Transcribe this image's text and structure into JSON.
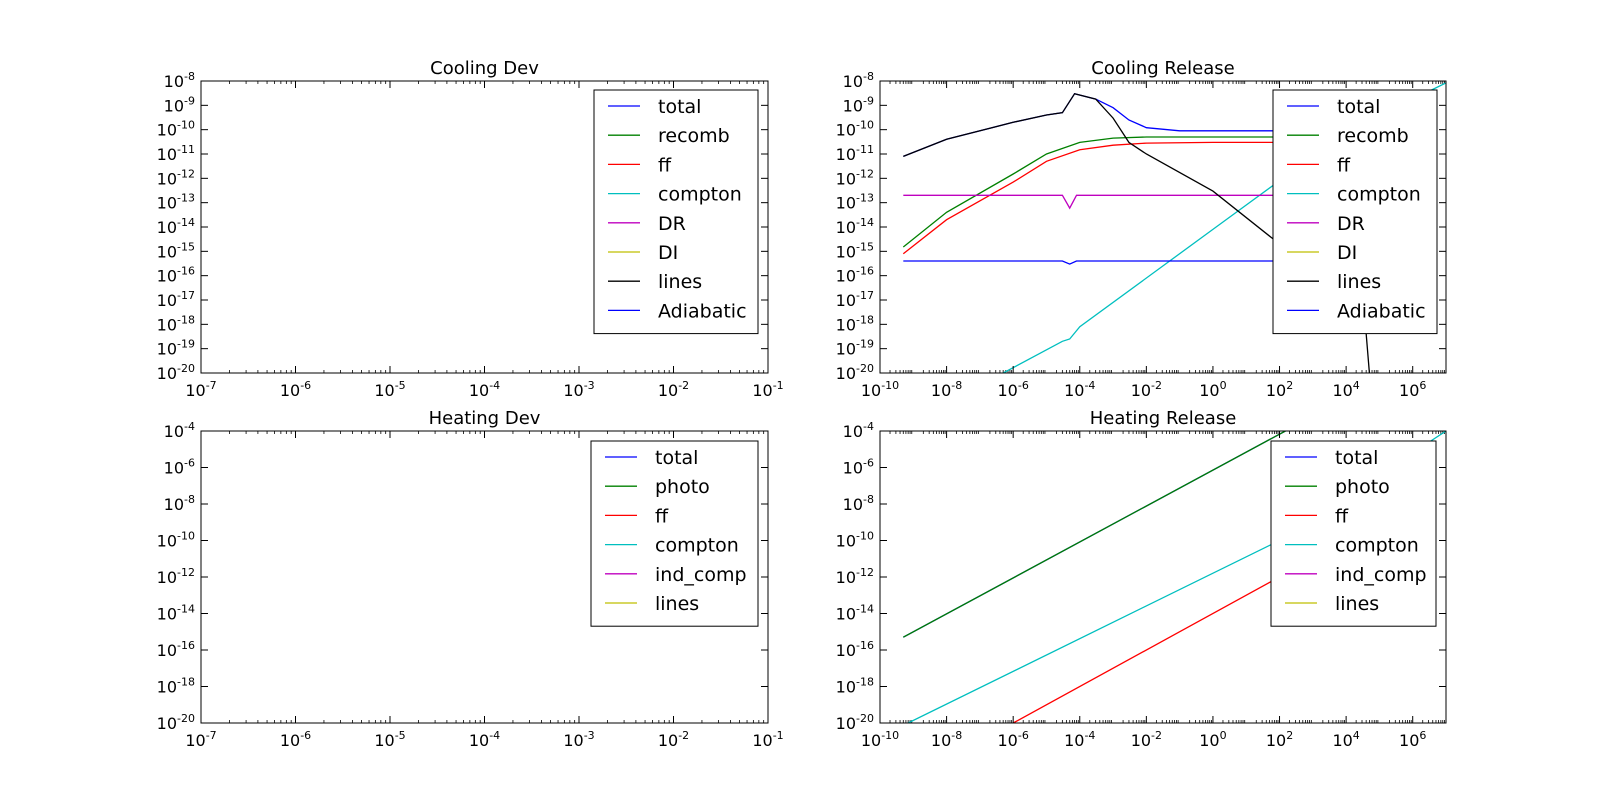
{
  "chart_data": [
    {
      "type": "line",
      "title": "Cooling Dev",
      "x_scale": "log",
      "y_scale": "log",
      "xlim": [
        1e-07,
        0.1
      ],
      "ylim": [
        1e-20,
        1e-08
      ],
      "x_ticks": [
        {
          "base": "10",
          "exp": "-7",
          "value": 1e-07
        },
        {
          "base": "10",
          "exp": "-6",
          "value": 1e-06
        },
        {
          "base": "10",
          "exp": "-5",
          "value": 1e-05
        },
        {
          "base": "10",
          "exp": "-4",
          "value": 0.0001
        },
        {
          "base": "10",
          "exp": "-3",
          "value": 0.001
        },
        {
          "base": "10",
          "exp": "-2",
          "value": 0.01
        },
        {
          "base": "10",
          "exp": "-1",
          "value": 0.1
        }
      ],
      "y_ticks": [
        {
          "base": "10",
          "exp": "-8",
          "value": 1e-08
        },
        {
          "base": "10",
          "exp": "-9",
          "value": 1e-09
        },
        {
          "base": "10",
          "exp": "-10",
          "value": 1e-10
        },
        {
          "base": "10",
          "exp": "-11",
          "value": 1e-11
        },
        {
          "base": "10",
          "exp": "-12",
          "value": 1e-12
        },
        {
          "base": "10",
          "exp": "-13",
          "value": 1e-13
        },
        {
          "base": "10",
          "exp": "-14",
          "value": 1e-14
        },
        {
          "base": "10",
          "exp": "-15",
          "value": 1e-15
        },
        {
          "base": "10",
          "exp": "-16",
          "value": 1e-16
        },
        {
          "base": "10",
          "exp": "-17",
          "value": 1e-17
        },
        {
          "base": "10",
          "exp": "-18",
          "value": 1e-18
        },
        {
          "base": "10",
          "exp": "-19",
          "value": 1e-19
        },
        {
          "base": "10",
          "exp": "-20",
          "value": 1e-20
        }
      ],
      "legend_position": "top-right",
      "series": [
        {
          "name": "total",
          "color": "#0000ff",
          "points": []
        },
        {
          "name": "recomb",
          "color": "#008000",
          "points": []
        },
        {
          "name": "ff",
          "color": "#ff0000",
          "points": []
        },
        {
          "name": "compton",
          "color": "#00bfbf",
          "points": []
        },
        {
          "name": "DR",
          "color": "#bf00bf",
          "points": []
        },
        {
          "name": "DI",
          "color": "#bfbf00",
          "points": []
        },
        {
          "name": "lines",
          "color": "#000000",
          "points": []
        },
        {
          "name": "Adiabatic",
          "color": "#0000ff",
          "points": []
        }
      ]
    },
    {
      "type": "line",
      "title": "Cooling Release",
      "x_scale": "log",
      "y_scale": "log",
      "xlim": [
        1e-10,
        10000000.0
      ],
      "ylim": [
        1e-20,
        1e-08
      ],
      "x_ticks": [
        {
          "base": "10",
          "exp": "-10",
          "value": 1e-10
        },
        {
          "base": "10",
          "exp": "-8",
          "value": 1e-08
        },
        {
          "base": "10",
          "exp": "-6",
          "value": 1e-06
        },
        {
          "base": "10",
          "exp": "-4",
          "value": 0.0001
        },
        {
          "base": "10",
          "exp": "-2",
          "value": 0.01
        },
        {
          "base": "10",
          "exp": "0",
          "value": 1
        },
        {
          "base": "10",
          "exp": "2",
          "value": 100.0
        },
        {
          "base": "10",
          "exp": "4",
          "value": 10000.0
        },
        {
          "base": "10",
          "exp": "6",
          "value": 1000000.0
        }
      ],
      "y_ticks": [
        {
          "base": "10",
          "exp": "-8",
          "value": 1e-08
        },
        {
          "base": "10",
          "exp": "-9",
          "value": 1e-09
        },
        {
          "base": "10",
          "exp": "-10",
          "value": 1e-10
        },
        {
          "base": "10",
          "exp": "-11",
          "value": 1e-11
        },
        {
          "base": "10",
          "exp": "-12",
          "value": 1e-12
        },
        {
          "base": "10",
          "exp": "-13",
          "value": 1e-13
        },
        {
          "base": "10",
          "exp": "-14",
          "value": 1e-14
        },
        {
          "base": "10",
          "exp": "-15",
          "value": 1e-15
        },
        {
          "base": "10",
          "exp": "-16",
          "value": 1e-16
        },
        {
          "base": "10",
          "exp": "-17",
          "value": 1e-17
        },
        {
          "base": "10",
          "exp": "-18",
          "value": 1e-18
        },
        {
          "base": "10",
          "exp": "-19",
          "value": 1e-19
        },
        {
          "base": "10",
          "exp": "-20",
          "value": 1e-20
        }
      ],
      "legend_position": "top-right",
      "series": [
        {
          "name": "total",
          "color": "#0000ff",
          "points": [
            [
              5e-10,
              8e-12
            ],
            [
              1e-08,
              4e-11
            ],
            [
              1e-06,
              2e-10
            ],
            [
              1e-05,
              4e-10
            ],
            [
              3e-05,
              5e-10
            ],
            [
              7e-05,
              3e-09
            ],
            [
              0.0003,
              1.8e-09
            ],
            [
              0.001,
              8e-10
            ],
            [
              0.003,
              2.5e-10
            ],
            [
              0.01,
              1.2e-10
            ],
            [
              0.1,
              9e-11
            ],
            [
              100.0,
              9e-11
            ],
            [
              10000.0,
              9e-11
            ]
          ]
        },
        {
          "name": "recomb",
          "color": "#008000",
          "points": [
            [
              5e-10,
              1.5e-15
            ],
            [
              1e-08,
              4e-14
            ],
            [
              1e-06,
              1.5e-12
            ],
            [
              1e-05,
              1e-11
            ],
            [
              0.0001,
              3e-11
            ],
            [
              0.001,
              4.5e-11
            ],
            [
              0.01,
              5e-11
            ],
            [
              1.0,
              5e-11
            ],
            [
              100.0,
              5e-11
            ],
            [
              10000.0,
              5e-11
            ]
          ]
        },
        {
          "name": "ff",
          "color": "#ff0000",
          "points": [
            [
              5e-10,
              8e-16
            ],
            [
              1e-08,
              2e-14
            ],
            [
              1e-06,
              7e-13
            ],
            [
              1e-05,
              5e-12
            ],
            [
              0.0001,
              1.5e-11
            ],
            [
              0.001,
              2.3e-11
            ],
            [
              0.01,
              2.8e-11
            ],
            [
              1.0,
              3e-11
            ],
            [
              100.0,
              3e-11
            ],
            [
              10000.0,
              3e-11
            ]
          ]
        },
        {
          "name": "compton",
          "color": "#00bfbf",
          "points": [
            [
              5e-07,
              1e-20
            ],
            [
              3e-05,
              2e-19
            ],
            [
              5e-05,
              2.5e-19
            ],
            [
              0.0001,
              8e-19
            ],
            [
              1.0,
              8e-15
            ],
            [
              10000.0,
              8e-11
            ],
            [
              13000000.0,
              1e-08
            ]
          ]
        },
        {
          "name": "DR",
          "color": "#bf00bf",
          "points": [
            [
              5e-10,
              2e-13
            ],
            [
              3e-05,
              2e-13
            ],
            [
              5e-05,
              6e-14
            ],
            [
              8e-05,
              2e-13
            ],
            [
              100.0,
              2e-13
            ],
            [
              10000.0,
              2e-13
            ]
          ]
        },
        {
          "name": "DI",
          "color": "#bfbf00",
          "points": []
        },
        {
          "name": "lines",
          "color": "#000000",
          "points": [
            [
              5e-10,
              8e-12
            ],
            [
              1e-08,
              4e-11
            ],
            [
              1e-06,
              2e-10
            ],
            [
              1e-05,
              4e-10
            ],
            [
              3e-05,
              5e-10
            ],
            [
              7e-05,
              3e-09
            ],
            [
              0.0003,
              1.8e-09
            ],
            [
              0.001,
              3e-10
            ],
            [
              0.003,
              3e-11
            ],
            [
              0.01,
              1e-11
            ],
            [
              1.0,
              3e-13
            ],
            [
              100.0,
              2e-15
            ],
            [
              1000.0,
              5e-16
            ],
            [
              30000.0,
              5e-17
            ],
            [
              50000.0,
              1e-20
            ]
          ]
        },
        {
          "name": "Adiabatic",
          "color": "#0000ff",
          "points": [
            [
              5e-10,
              4e-16
            ],
            [
              3e-05,
              4e-16
            ],
            [
              5e-05,
              3e-16
            ],
            [
              8e-05,
              4e-16
            ],
            [
              100.0,
              4e-16
            ],
            [
              10000.0,
              4e-16
            ]
          ]
        }
      ]
    },
    {
      "type": "line",
      "title": "Heating Dev",
      "x_scale": "log",
      "y_scale": "log",
      "xlim": [
        1e-07,
        0.1
      ],
      "ylim": [
        1e-20,
        0.0001
      ],
      "x_ticks": [
        {
          "base": "10",
          "exp": "-7",
          "value": 1e-07
        },
        {
          "base": "10",
          "exp": "-6",
          "value": 1e-06
        },
        {
          "base": "10",
          "exp": "-5",
          "value": 1e-05
        },
        {
          "base": "10",
          "exp": "-4",
          "value": 0.0001
        },
        {
          "base": "10",
          "exp": "-3",
          "value": 0.001
        },
        {
          "base": "10",
          "exp": "-2",
          "value": 0.01
        },
        {
          "base": "10",
          "exp": "-1",
          "value": 0.1
        }
      ],
      "y_ticks": [
        {
          "base": "10",
          "exp": "-4",
          "value": 0.0001
        },
        {
          "base": "10",
          "exp": "-6",
          "value": 1e-06
        },
        {
          "base": "10",
          "exp": "-8",
          "value": 1e-08
        },
        {
          "base": "10",
          "exp": "-10",
          "value": 1e-10
        },
        {
          "base": "10",
          "exp": "-12",
          "value": 1e-12
        },
        {
          "base": "10",
          "exp": "-14",
          "value": 1e-14
        },
        {
          "base": "10",
          "exp": "-16",
          "value": 1e-16
        },
        {
          "base": "10",
          "exp": "-18",
          "value": 1e-18
        },
        {
          "base": "10",
          "exp": "-20",
          "value": 1e-20
        }
      ],
      "legend_position": "top-right",
      "series": [
        {
          "name": "total",
          "color": "#0000ff",
          "points": []
        },
        {
          "name": "photo",
          "color": "#008000",
          "points": []
        },
        {
          "name": "ff",
          "color": "#ff0000",
          "points": []
        },
        {
          "name": "compton",
          "color": "#00bfbf",
          "points": []
        },
        {
          "name": "ind_comp",
          "color": "#bf00bf",
          "points": []
        },
        {
          "name": "lines",
          "color": "#bfbf00",
          "points": []
        }
      ]
    },
    {
      "type": "line",
      "title": "Heating Release",
      "x_scale": "log",
      "y_scale": "log",
      "xlim": [
        1e-10,
        10000000.0
      ],
      "ylim": [
        1e-20,
        0.0001
      ],
      "x_ticks": [
        {
          "base": "10",
          "exp": "-10",
          "value": 1e-10
        },
        {
          "base": "10",
          "exp": "-8",
          "value": 1e-08
        },
        {
          "base": "10",
          "exp": "-6",
          "value": 1e-06
        },
        {
          "base": "10",
          "exp": "-4",
          "value": 0.0001
        },
        {
          "base": "10",
          "exp": "-2",
          "value": 0.01
        },
        {
          "base": "10",
          "exp": "0",
          "value": 1
        },
        {
          "base": "10",
          "exp": "2",
          "value": 100.0
        },
        {
          "base": "10",
          "exp": "4",
          "value": 10000.0
        },
        {
          "base": "10",
          "exp": "6",
          "value": 1000000.0
        }
      ],
      "y_ticks": [
        {
          "base": "10",
          "exp": "-4",
          "value": 0.0001
        },
        {
          "base": "10",
          "exp": "-6",
          "value": 1e-06
        },
        {
          "base": "10",
          "exp": "-8",
          "value": 1e-08
        },
        {
          "base": "10",
          "exp": "-10",
          "value": 1e-10
        },
        {
          "base": "10",
          "exp": "-12",
          "value": 1e-12
        },
        {
          "base": "10",
          "exp": "-14",
          "value": 1e-14
        },
        {
          "base": "10",
          "exp": "-16",
          "value": 1e-16
        },
        {
          "base": "10",
          "exp": "-18",
          "value": 1e-18
        },
        {
          "base": "10",
          "exp": "-20",
          "value": 1e-20
        }
      ],
      "legend_position": "top-right",
      "series": [
        {
          "name": "total",
          "color": "#0000ff",
          "points": [
            [
              5e-10,
              5e-16
            ],
            [
              150.0,
              0.0001
            ]
          ]
        },
        {
          "name": "photo",
          "color": "#008000",
          "points": [
            [
              5e-10,
              5e-16
            ],
            [
              150.0,
              0.0001
            ]
          ]
        },
        {
          "name": "ff",
          "color": "#ff0000",
          "points": [
            [
              1e-06,
              1e-20
            ],
            [
              100.0,
              1e-12
            ],
            [
              10000.0,
              1e-10
            ]
          ]
        },
        {
          "name": "compton",
          "color": "#00bfbf",
          "points": [
            [
              7e-10,
              1e-20
            ],
            [
              100.0,
              1e-10
            ],
            [
              10000000.0,
              0.0001
            ]
          ]
        },
        {
          "name": "ind_comp",
          "color": "#bf00bf",
          "points": []
        },
        {
          "name": "lines",
          "color": "#bfbf00",
          "points": []
        }
      ]
    }
  ]
}
